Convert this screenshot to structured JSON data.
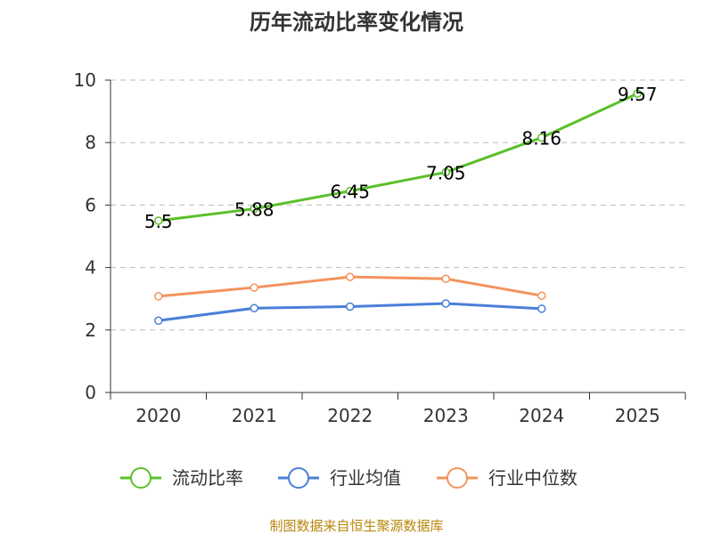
{
  "chart_data": {
    "type": "line",
    "title": "历年流动比率变化情况",
    "categories": [
      "2020",
      "2021",
      "2022",
      "2023",
      "2024",
      "2025"
    ],
    "ylim": [
      0,
      10
    ],
    "yticks": [
      0,
      2,
      4,
      6,
      8,
      10
    ],
    "grid": true,
    "legend_position": "bottom",
    "series": [
      {
        "name": "流动比率",
        "color": "#5ac02a",
        "values": [
          5.5,
          5.88,
          6.45,
          7.05,
          8.16,
          9.57
        ],
        "data_labels": [
          "5.5",
          "5.88",
          "6.45",
          "7.05",
          "8.16",
          "9.57"
        ]
      },
      {
        "name": "行业均值",
        "color": "#4a7fd9",
        "values": [
          2.3,
          2.7,
          2.75,
          2.85,
          2.68,
          null
        ]
      },
      {
        "name": "行业中位数",
        "color": "#f4925e",
        "values": [
          3.08,
          3.36,
          3.7,
          3.64,
          3.1,
          null
        ]
      }
    ],
    "source": "制图数据来自恒生聚源数据库"
  }
}
